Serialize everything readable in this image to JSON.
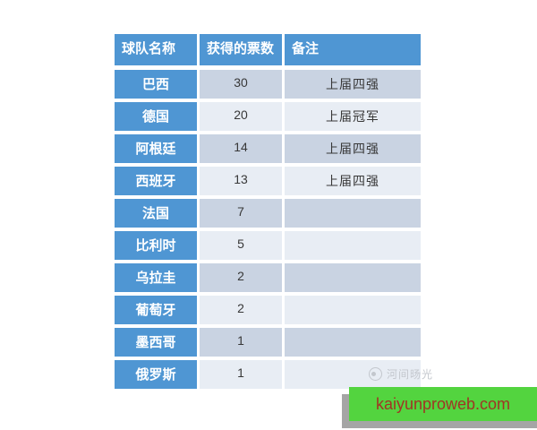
{
  "chart_data": {
    "type": "table",
    "columns": [
      "球队名称",
      "获得的票数",
      "备注"
    ],
    "rows": [
      [
        "巴西",
        "30",
        "上届四强"
      ],
      [
        "德国",
        "20",
        "上届冠军"
      ],
      [
        "阿根廷",
        "14",
        "上届四强"
      ],
      [
        "西班牙",
        "13",
        "上届四强"
      ],
      [
        "法国",
        "7",
        ""
      ],
      [
        "比利时",
        "5",
        ""
      ],
      [
        "乌拉圭",
        "2",
        ""
      ],
      [
        "葡萄牙",
        "2",
        ""
      ],
      [
        "墨西哥",
        "1",
        ""
      ],
      [
        "俄罗斯",
        "1",
        ""
      ]
    ],
    "layout_hints": {
      "header_fill": "blue",
      "first_column_fill": "blue",
      "banded_rows": true
    }
  },
  "watermark": {
    "text": "河间旸光",
    "icon": "watermark-logo-icon"
  },
  "banner": {
    "text": "kaiyunproweb.com"
  },
  "colors": {
    "header_blue": "#4f96d3",
    "band_dark": "#c9d3e2",
    "band_light": "#e8edf4",
    "cell_text": "#383838",
    "banner_green": "#53d43f",
    "banner_text": "#a03524",
    "shadow_gray": "#a5a5a5",
    "watermark_gray": "#c3c7cd"
  }
}
